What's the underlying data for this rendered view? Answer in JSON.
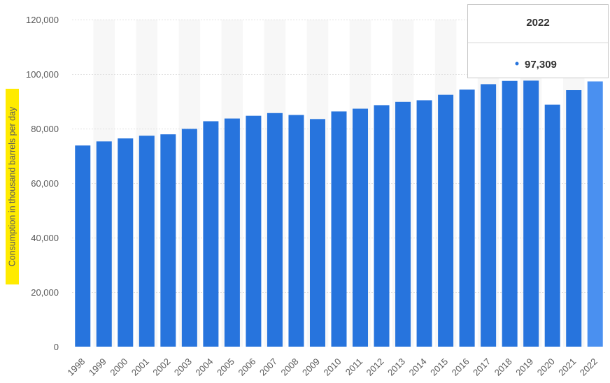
{
  "chart_data": {
    "type": "bar",
    "xlabel": "",
    "ylabel": "Consumption in thousand barrels per day",
    "categories": [
      "1998",
      "1999",
      "2000",
      "2001",
      "2002",
      "2003",
      "2004",
      "2005",
      "2006",
      "2007",
      "2008",
      "2009",
      "2010",
      "2011",
      "2012",
      "2013",
      "2014",
      "2015",
      "2016",
      "2017",
      "2018",
      "2019",
      "2020",
      "2021",
      "2022"
    ],
    "values": [
      73800,
      75300,
      76400,
      77400,
      77900,
      79900,
      82700,
      83700,
      84700,
      85700,
      85000,
      83500,
      86300,
      87300,
      88600,
      89800,
      90400,
      92400,
      94300,
      96300,
      97500,
      97600,
      88800,
      94100,
      97309
    ],
    "y_ticks": [
      "0",
      "20,000",
      "40,000",
      "60,000",
      "80,000",
      "100,000",
      "120,000"
    ],
    "ylim": [
      0,
      120000
    ],
    "grid": true,
    "highlighted_category": "2022",
    "colors": {
      "bar": "#2774dd",
      "bar_highlight": "#4a90f0",
      "band": "#f7f7f7",
      "gridline": "#e0e0e0",
      "ylabel_highlight": "#ffeb00",
      "tooltip_dot": "#2774dd"
    },
    "tooltip": {
      "title": "2022",
      "value": "97,309"
    }
  }
}
